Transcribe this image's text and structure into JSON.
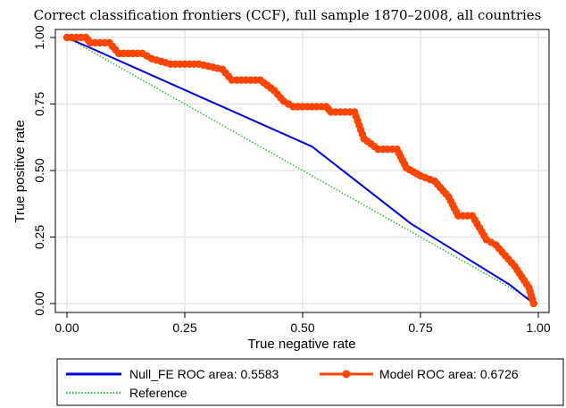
{
  "chart_data": {
    "type": "line",
    "title": "Correct classification frontiers (CCF), full sample 1870–2008, all countries",
    "xlabel": "True negative rate",
    "ylabel": "True positive rate",
    "xlim": [
      0,
      1
    ],
    "ylim": [
      0,
      1
    ],
    "xticks": [
      "0.00",
      "0.25",
      "0.50",
      "0.75",
      "1.00"
    ],
    "yticks": [
      "0.00",
      "0.25",
      "0.50",
      "0.75",
      "1.00"
    ],
    "grid": true,
    "legend_position": "bottom",
    "series": [
      {
        "name": "Null_FE ROC area: 0.5583",
        "color": "#0000e0",
        "style": "solid",
        "x": [
          0.0,
          0.52,
          0.73,
          0.94,
          0.99
        ],
        "y": [
          1.0,
          0.59,
          0.3,
          0.07,
          0.0
        ]
      },
      {
        "name": "Model ROC area: 0.6726",
        "color": "#ff4400",
        "style": "solid-markers",
        "x": [
          0.0,
          0.04,
          0.05,
          0.09,
          0.11,
          0.16,
          0.18,
          0.22,
          0.28,
          0.33,
          0.35,
          0.41,
          0.44,
          0.46,
          0.48,
          0.55,
          0.56,
          0.61,
          0.63,
          0.66,
          0.7,
          0.72,
          0.75,
          0.78,
          0.81,
          0.83,
          0.86,
          0.88,
          0.89,
          0.91,
          0.93,
          0.95,
          0.98,
          0.99
        ],
        "y": [
          1.0,
          1.0,
          0.98,
          0.98,
          0.94,
          0.94,
          0.92,
          0.9,
          0.9,
          0.88,
          0.84,
          0.84,
          0.8,
          0.76,
          0.74,
          0.74,
          0.72,
          0.72,
          0.62,
          0.58,
          0.58,
          0.51,
          0.48,
          0.46,
          0.4,
          0.33,
          0.33,
          0.27,
          0.24,
          0.22,
          0.18,
          0.14,
          0.06,
          0.0
        ]
      },
      {
        "name": "Reference",
        "color": "#33bb33",
        "style": "dotted",
        "x": [
          0.0,
          1.0
        ],
        "y": [
          1.0,
          0.0
        ]
      }
    ]
  }
}
